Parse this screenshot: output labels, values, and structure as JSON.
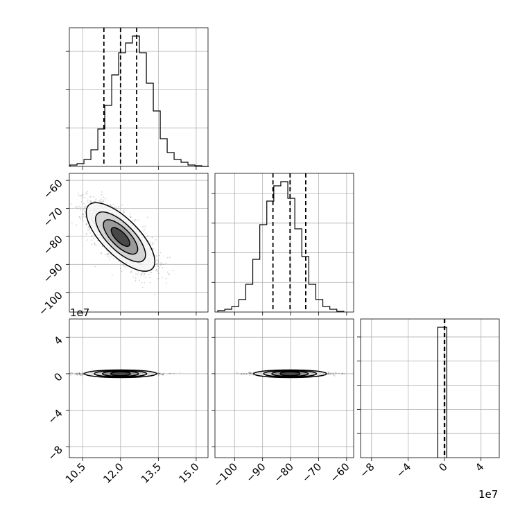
{
  "chart_data": {
    "type": "corner",
    "title": "",
    "grid": true,
    "params": [
      {
        "index": 0,
        "range": [
          9.97,
          15.47
        ],
        "ticks": [
          10.5,
          12.0,
          13.5,
          15.0
        ],
        "tick_labels": [
          "10.5",
          "12.0",
          "13.5",
          "15.0"
        ],
        "offset_label": "",
        "hist": {
          "bin_start": 10.0,
          "bin_width": 0.275,
          "counts": [
            0.01,
            0.02,
            0.05,
            0.12,
            0.27,
            0.44,
            0.66,
            0.82,
            0.89,
            0.94,
            0.82,
            0.6,
            0.4,
            0.2,
            0.1,
            0.05,
            0.03,
            0.01,
            0.005,
            0.0
          ]
        },
        "quantiles": [
          11.34,
          12.0,
          12.64
        ]
      },
      {
        "index": 1,
        "range": [
          -107.0,
          -57.5
        ],
        "ticks": [
          -100,
          -90,
          -80,
          -70,
          -60
        ],
        "tick_labels": [
          "−100",
          "−90",
          "−80",
          "−70",
          "−60"
        ],
        "offset_label": "",
        "hist": {
          "bin_start": -106.0,
          "bin_width": 2.5,
          "counts": [
            0.01,
            0.02,
            0.04,
            0.09,
            0.2,
            0.38,
            0.63,
            0.8,
            0.91,
            0.94,
            0.82,
            0.6,
            0.4,
            0.2,
            0.09,
            0.04,
            0.02,
            0.005
          ],
          "top_ticks": 4
        },
        "quantiles": [
          -86.3,
          -80.2,
          -74.6
        ]
      },
      {
        "index": 2,
        "range": [
          -9.2,
          6.0
        ],
        "ticks": [
          -8,
          -4,
          0,
          4
        ],
        "tick_labels": [
          "−8",
          "−4",
          "0",
          "4"
        ],
        "offset_label": "1e7",
        "hist": {
          "bin_start": -0.75,
          "bin_width": 0.5,
          "counts": [
            0.95,
            0.95
          ],
          "top_ticks": 5
        },
        "quantiles": [
          -0.02,
          0.0,
          0.02
        ]
      }
    ],
    "corr_1_0": -0.72,
    "center": [
      12.0,
      -80.2,
      0.0
    ],
    "sd": [
      0.65,
      5.9,
      0.08
    ],
    "offset_labels_shown": [
      "1e7",
      "1e7"
    ]
  }
}
